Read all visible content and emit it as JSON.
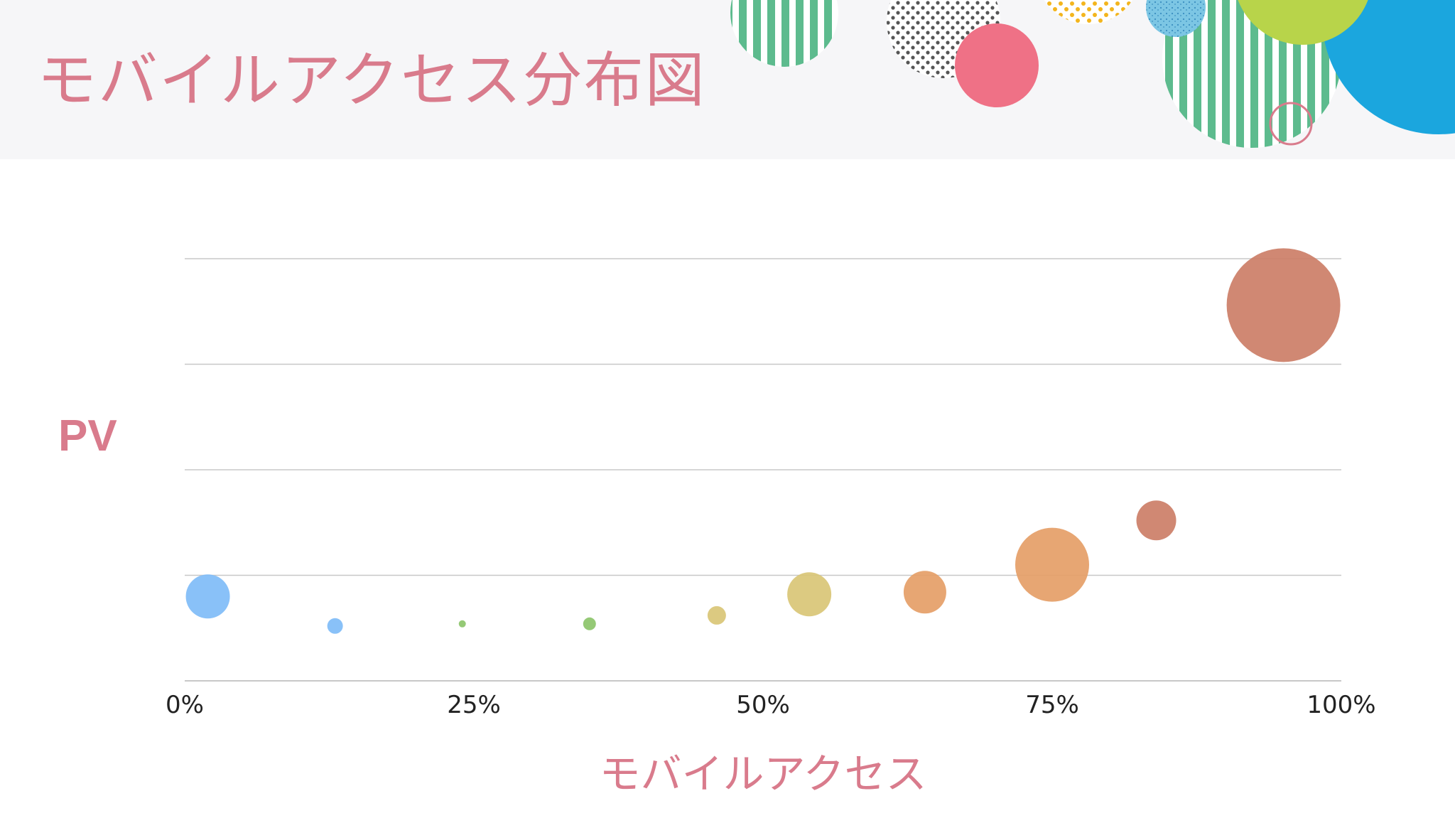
{
  "header": {
    "title": "モバイルアクセス分布図"
  },
  "colors": {
    "title": "#d97b8c",
    "header_bg": "#f6f6f8",
    "grid": "#c8c8c8"
  },
  "decor_icons": [
    "green-striped-circle-icon",
    "dotted-circle-icon",
    "pink-circle-icon",
    "yellow-dotted-circle-icon",
    "speckled-blue-circle-icon",
    "lime-circle-icon",
    "blue-circle-icon",
    "outline-ring-icon"
  ],
  "chart_data": {
    "type": "scatter",
    "title": "",
    "xlabel": "モバイルアクセス",
    "ylabel": "PV",
    "xlim": [
      0,
      100
    ],
    "ylim": [
      0,
      100
    ],
    "x_ticks": [
      "0%",
      "25%",
      "50%",
      "75%",
      "100%"
    ],
    "grid": true,
    "points": [
      {
        "x": 2,
        "y": 20,
        "size": 31,
        "color": "#7fbcf7"
      },
      {
        "x": 13,
        "y": 13,
        "size": 11,
        "color": "#7fbcf7"
      },
      {
        "x": 24,
        "y": 13.5,
        "size": 5,
        "color": "#8cc46a"
      },
      {
        "x": 35,
        "y": 13.5,
        "size": 9,
        "color": "#8cc46a"
      },
      {
        "x": 46,
        "y": 15.5,
        "size": 13,
        "color": "#d9c676"
      },
      {
        "x": 54,
        "y": 20.5,
        "size": 31,
        "color": "#d9c676"
      },
      {
        "x": 64,
        "y": 21,
        "size": 30,
        "color": "#e59e67"
      },
      {
        "x": 75,
        "y": 27.5,
        "size": 52,
        "color": "#e59e67"
      },
      {
        "x": 84,
        "y": 38,
        "size": 28,
        "color": "#cc7e67"
      },
      {
        "x": 95,
        "y": 89,
        "size": 80,
        "color": "#cc7e67"
      }
    ]
  }
}
